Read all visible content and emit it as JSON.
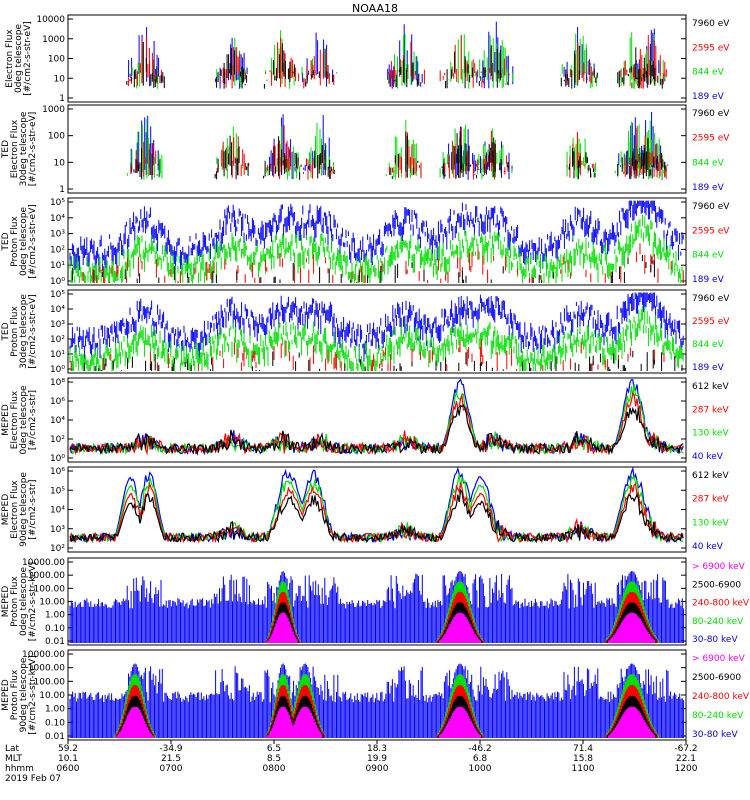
{
  "title": "NOAA18",
  "colors": {
    "black": "#000000",
    "red": "#ff0000",
    "green": "#00e000",
    "blue": "#0000ff",
    "magenta": "#ff00ff"
  },
  "panels": [
    {
      "ylabel": [
        "Electron Flux",
        "0deg telescope",
        "[#/cm2-s-str-eV]"
      ],
      "ticks": [
        "10000",
        "1000",
        "100",
        "10",
        "1"
      ],
      "legend": [
        {
          "text": "7960 eV",
          "color": "black"
        },
        {
          "text": "2595 eV",
          "color": "red"
        },
        {
          "text": "844 eV",
          "color": "green"
        },
        {
          "text": "189 eV",
          "color": "blue"
        }
      ]
    },
    {
      "ylabel": [
        "TED",
        "Electron Flux",
        "30deg telescope",
        "[#/cm2-s-str-eV]"
      ],
      "ticks": [
        "1000",
        "100",
        "10",
        "1"
      ],
      "legend": [
        {
          "text": "7960 eV",
          "color": "black"
        },
        {
          "text": "2595 eV",
          "color": "red"
        },
        {
          "text": "844 eV",
          "color": "green"
        },
        {
          "text": "189 eV",
          "color": "blue"
        }
      ]
    },
    {
      "ylabel": [
        "TED",
        "Proton Flux",
        "0deg telescope",
        "[#/cm2-s-str-eV]"
      ],
      "ticks": [
        "10⁵",
        "10⁴",
        "10³",
        "10²",
        "10¹",
        "10⁰"
      ],
      "legend": [
        {
          "text": "7960 eV",
          "color": "black"
        },
        {
          "text": "2595 eV",
          "color": "red"
        },
        {
          "text": "844 eV",
          "color": "green"
        },
        {
          "text": "189 eV",
          "color": "blue"
        }
      ]
    },
    {
      "ylabel": [
        "TED",
        "Proton Flux",
        "30deg telescope",
        "[#/cm2-s-str-eV]"
      ],
      "ticks": [
        "10⁵",
        "10⁴",
        "10³",
        "10²",
        "10¹",
        "10⁰"
      ],
      "legend": [
        {
          "text": "7960 eV",
          "color": "black"
        },
        {
          "text": "2595 eV",
          "color": "red"
        },
        {
          "text": "844 eV",
          "color": "green"
        },
        {
          "text": "189 eV",
          "color": "blue"
        }
      ]
    },
    {
      "ylabel": [
        "MEPED",
        "Electron Flux",
        "0deg telescope",
        "[#/cm2-s-str]"
      ],
      "ticks": [
        "10⁸",
        "10⁶",
        "10⁴",
        "10²",
        "10⁰"
      ],
      "legend": [
        {
          "text": "612 keV",
          "color": "black"
        },
        {
          "text": "287 keV",
          "color": "red"
        },
        {
          "text": "130 keV",
          "color": "green"
        },
        {
          "text": "40 keV",
          "color": "blue"
        }
      ]
    },
    {
      "ylabel": [
        "MEPED",
        "Electron Flux",
        "90deg telescope",
        "[#/cm2-s-str]"
      ],
      "ticks": [
        "10⁶",
        "10⁵",
        "10⁴",
        "10³",
        "10²"
      ],
      "legend": [
        {
          "text": "612 keV",
          "color": "black"
        },
        {
          "text": "287 keV",
          "color": "red"
        },
        {
          "text": "130 keV",
          "color": "green"
        },
        {
          "text": "40 keV",
          "color": "blue"
        }
      ]
    },
    {
      "ylabel": [
        "MEPED",
        "Proton Flux",
        "0deg telescope",
        "[#/cm2-s-str-keV]"
      ],
      "ticks": [
        "10000.00",
        "1000.00",
        "100.00",
        "10.00",
        "1.00",
        "0.10",
        "0.01"
      ],
      "legend": [
        {
          "text": "> 6900 keV",
          "color": "magenta"
        },
        {
          "text": "2500-6900",
          "color": "black"
        },
        {
          "text": "240-800 keV",
          "color": "red"
        },
        {
          "text": "80-240 keV",
          "color": "green"
        },
        {
          "text": "30-80 keV",
          "color": "blue"
        }
      ]
    },
    {
      "ylabel": [
        "MEPED",
        "Proton Flux",
        "90deg telescope",
        "[#/cm2-s-str-keV]"
      ],
      "ticks": [
        "10000.00",
        "1000.00",
        "100.00",
        "10.00",
        "1.00",
        "0.10",
        "0.01"
      ],
      "legend": [
        {
          "text": "> 6900 keV",
          "color": "magenta"
        },
        {
          "text": "2500-6900",
          "color": "black"
        },
        {
          "text": "240-800 keV",
          "color": "red"
        },
        {
          "text": "80-240 keV",
          "color": "green"
        },
        {
          "text": "30-80 keV",
          "color": "blue"
        }
      ]
    }
  ],
  "xaxis": {
    "row_labels": [
      "Lat",
      "MLT",
      "hhmm",
      "2019 Feb 07"
    ],
    "columns": [
      {
        "lat": "59.2",
        "mlt": "10.1",
        "hhmm": "0600"
      },
      {
        "lat": "-34.9",
        "mlt": "21.5",
        "hhmm": "0700"
      },
      {
        "lat": "6.5",
        "mlt": "8.5",
        "hhmm": "0800"
      },
      {
        "lat": "18.3",
        "mlt": "19.9",
        "hhmm": "0900"
      },
      {
        "lat": "-46.2",
        "mlt": "6.8",
        "hhmm": "1000"
      },
      {
        "lat": "71.4",
        "mlt": "15.8",
        "hhmm": "1100"
      },
      {
        "lat": "-67.2",
        "mlt": "22.1",
        "hhmm": "1200"
      }
    ]
  },
  "chart_data": {
    "type": "line",
    "title": "NOAA18",
    "x_range": [
      "0600",
      "1200"
    ],
    "x_ticks": [
      "0600",
      "0700",
      "0800",
      "0900",
      "1000",
      "1100",
      "1200"
    ],
    "date": "2019 Feb 07",
    "y_scale": "log",
    "passes_approx_hhmm": [
      "0622",
      "0700",
      "0738",
      "0820",
      "0856",
      "0930",
      "1010",
      "1045",
      "1120",
      "1155"
    ],
    "series_by_panel": [
      [
        "7960 eV",
        "2595 eV",
        "844 eV",
        "189 eV"
      ],
      [
        "7960 eV",
        "2595 eV",
        "844 eV",
        "189 eV"
      ],
      [
        "7960 eV",
        "2595 eV",
        "844 eV",
        "189 eV"
      ],
      [
        "7960 eV",
        "2595 eV",
        "844 eV",
        "189 eV"
      ],
      [
        "612 keV",
        "287 keV",
        "130 keV",
        "40 keV"
      ],
      [
        "612 keV",
        "287 keV",
        "130 keV",
        "40 keV"
      ],
      [
        "> 6900 keV",
        "2500-6900",
        "240-800 keV",
        "80-240 keV",
        "30-80 keV"
      ],
      [
        "> 6900 keV",
        "2500-6900",
        "240-800 keV",
        "80-240 keV",
        "30-80 keV"
      ]
    ]
  }
}
